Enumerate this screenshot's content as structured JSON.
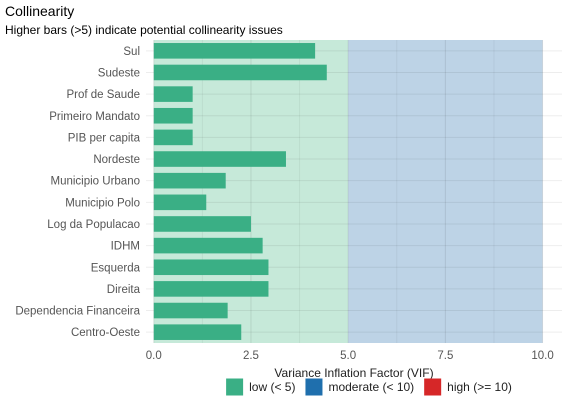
{
  "chart_data": {
    "type": "bar",
    "orientation": "horizontal",
    "title": "Collinearity",
    "subtitle": "Higher bars (>5) indicate potential collinearity issues",
    "xlabel": "Variance Inflation Factor (VIF)",
    "ylabel": "",
    "xlim": [
      -0.2,
      10.5
    ],
    "xticks": [
      0,
      2.5,
      5,
      7.5,
      10
    ],
    "xtick_labels": [
      "0.0",
      "2.5",
      "5.0",
      "7.5",
      "10.0"
    ],
    "categories": [
      "Sul",
      "Sudeste",
      "Prof de Saude",
      "Primeiro Mandato",
      "PIB per capita",
      "Nordeste",
      "Municipio Urbano",
      "Municipio Polo",
      "Log da Populacao",
      "IDHM",
      "Esquerda",
      "Direita",
      "Dependencia Financeira",
      "Centro-Oeste"
    ],
    "values": [
      4.15,
      4.45,
      1.0,
      1.0,
      1.0,
      3.4,
      1.85,
      1.35,
      2.5,
      2.8,
      2.95,
      2.95,
      1.9,
      2.25
    ],
    "bar_color": "#3aaf85",
    "grid": true,
    "background_regions": [
      {
        "from": 0,
        "to": 5,
        "color": "#c6e9d9"
      },
      {
        "from": 5,
        "to": 10,
        "color": "#bdd3e6"
      }
    ],
    "legend": {
      "placement": "bottom",
      "items": [
        {
          "label": "low (< 5)",
          "color": "#3aaf85"
        },
        {
          "label": "moderate (< 10)",
          "color": "#1f6fad"
        },
        {
          "label": "high (>= 10)",
          "color": "#d62728"
        }
      ]
    }
  }
}
